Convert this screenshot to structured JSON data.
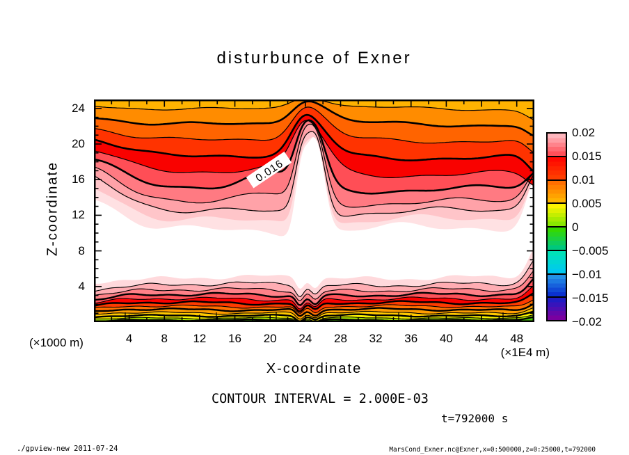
{
  "page": {
    "title": "disturbunce of Exner",
    "footer_left": "./gpview-new  2011-07-24",
    "footer_right": "MarsCond_Exner.nc@Exner,x=0:500000,z=0:25000,t=792000"
  },
  "chart_data": {
    "type": "filled_contour",
    "title": "disturbunce of Exner",
    "xlabel": "X-coordinate",
    "ylabel": "Z-coordinate",
    "x_unit_label_left": "(×1000 m)",
    "x_unit_label_right": "(×1E4 m)",
    "x_range": [
      0,
      50
    ],
    "z_range": [
      0,
      25
    ],
    "x_ticks": [
      "4",
      "8",
      "12",
      "16",
      "20",
      "24",
      "28",
      "32",
      "36",
      "40",
      "44",
      "48"
    ],
    "y_ticks": [
      "4",
      "8",
      "12",
      "16",
      "20",
      "24"
    ],
    "contour_interval_text": "CONTOUR INTERVAL = 2.000E-03",
    "time_text": "t=792000 s",
    "inline_contour_label": "0.016",
    "colorbar": {
      "range": [
        -0.02,
        0.02
      ],
      "tick_labels": [
        "0.02",
        "0.015",
        "0.01",
        "0.005",
        "0",
        "−0.005",
        "−0.01",
        "−0.015",
        "−0.02"
      ],
      "segments": [
        {
          "top": "#ffb6bd",
          "bottom": "#ff5059"
        },
        {
          "top": "#ff0800",
          "bottom": "#ff3d00"
        },
        {
          "top": "#ff6f00",
          "bottom": "#ffb300"
        },
        {
          "top": "#fdf400",
          "bottom": "#8ae800"
        },
        {
          "top": "#35d800",
          "bottom": "#00c87d"
        },
        {
          "top": "#00e2b8",
          "bottom": "#00c9f0"
        },
        {
          "top": "#2391e8",
          "bottom": "#0a31d0"
        },
        {
          "top": "#201bc4",
          "bottom": "#7a00a0"
        }
      ]
    },
    "upper_bands": [
      {
        "color": "#ffb301",
        "base": 13,
        "namp": 3,
        "ph": 0.5,
        "p1": -8,
        "s1": 18,
        "p2": -11,
        "s2": 24,
        "p3": 0,
        "re": 16,
        "ls": -6
      },
      {
        "color": "#ff8c00",
        "base": 35,
        "namp": 4,
        "ph": 1.2,
        "p1": -16,
        "s1": 18,
        "p2": -21,
        "s2": 24,
        "p3": 0,
        "re": 20,
        "ls": -13
      },
      {
        "color": "#ff6400",
        "base": 58,
        "namp": 4.5,
        "ph": 1.9,
        "p1": -22,
        "s1": 18,
        "p2": -28,
        "s2": 24,
        "p3": 0,
        "re": 24,
        "ls": -21
      },
      {
        "color": "#ff3300",
        "base": 82,
        "namp": 5,
        "ph": 2.6,
        "p1": -28,
        "s1": 17,
        "p2": -36,
        "s2": 23,
        "p3": 0,
        "re": 26,
        "ls": -30
      },
      {
        "color": "#f90200",
        "base": 106,
        "namp": 5.5,
        "ph": 3.3,
        "p1": -35,
        "s1": 16,
        "p2": -47,
        "s2": 22,
        "p3": -8,
        "re": 20,
        "ls": -38
      },
      {
        "color": "#ff4e56",
        "base": 128,
        "namp": 6,
        "ph": 4.0,
        "p1": -47,
        "s1": 12,
        "p2": -73,
        "s2": 15,
        "p3": -20,
        "re": -24,
        "ls": -44
      },
      {
        "color": "#ff7a82",
        "base": 147,
        "namp": 6.5,
        "ph": 4.7,
        "p1": -57,
        "s1": 11,
        "p2": -93,
        "s2": 14,
        "p3": -10,
        "re": -48,
        "ls": -48
      },
      {
        "color": "#ffa2a8",
        "base": 161,
        "namp": 7,
        "ph": 5.4,
        "p1": -67,
        "s1": 10,
        "p2": -109,
        "s2": 13,
        "p3": 0,
        "re": -62,
        "ls": -50
      },
      {
        "color": "#ffc5c9",
        "base": 174,
        "namp": 9,
        "ph": 6.1,
        "p1": -77,
        "s1": 9.5,
        "p2": -122,
        "s2": 12.5,
        "p3": 0,
        "re": -72,
        "ls": -48
      },
      {
        "color": "#ffe1e3",
        "base": 187,
        "namp": 10,
        "ph": 6.8,
        "p1": -87,
        "s1": 9,
        "p2": -134,
        "s2": 12,
        "p3": 0,
        "re": -80,
        "ls": -45
      }
    ],
    "line_widths_upper": [
      1.2,
      2.6,
      1.2,
      2.6,
      1.2,
      2.6,
      1.2,
      1.2,
      0,
      0
    ],
    "lower_bands": [
      {
        "color": "#ffd9dc",
        "base": 256,
        "namp": 4.5,
        "ph": 0.4,
        "n1": 15,
        "n2": 13,
        "re": -48,
        "ls": 7
      },
      {
        "color": "#ffadb3",
        "base": 266,
        "namp": 4.0,
        "ph": 1.1,
        "n1": 15,
        "n2": 13,
        "re": -40,
        "ls": 7
      },
      {
        "color": "#ff8188",
        "base": 274,
        "namp": 3.6,
        "ph": 1.8,
        "n1": 14,
        "n2": 12,
        "re": -33,
        "ls": 6
      },
      {
        "color": "#ff5159",
        "base": 281,
        "namp": 3.2,
        "ph": 2.5,
        "n1": 14,
        "n2": 12,
        "re": -27,
        "ls": 6
      },
      {
        "color": "#fa0100",
        "base": 287,
        "namp": 2.9,
        "ph": 3.2,
        "n1": 13,
        "n2": 11,
        "re": -22,
        "ls": 5
      },
      {
        "color": "#ff3b00",
        "base": 292.5,
        "namp": 2.6,
        "ph": 3.9,
        "n1": 12,
        "n2": 10,
        "re": -18,
        "ls": 5
      },
      {
        "color": "#ff6f00",
        "base": 297.5,
        "namp": 2.3,
        "ph": 4.6,
        "n1": 11,
        "n2": 9,
        "re": -14,
        "ls": 4
      },
      {
        "color": "#ff9d00",
        "base": 302,
        "namp": 2.1,
        "ph": 5.3,
        "n1": 10,
        "n2": 8,
        "re": -11,
        "ls": 4
      },
      {
        "color": "#ffc901",
        "base": 306.5,
        "namp": 1.9,
        "ph": 6.0,
        "n1": 9,
        "n2": 7,
        "re": -9,
        "ls": 3
      },
      {
        "color": "#f7f100",
        "base": 310.5,
        "namp": 1.7,
        "ph": 6.7,
        "n1": 8,
        "n2": 6,
        "re": -7,
        "ls": 3
      },
      {
        "color": "#a9e500",
        "base": 314,
        "namp": 1.4,
        "ph": 7.4,
        "n1": 6,
        "n2": 5,
        "re": -5,
        "ls": 2
      },
      {
        "color": "#49c901",
        "base": 317,
        "namp": 1.1,
        "ph": 8.1,
        "n1": 4,
        "n2": 3,
        "re": -4,
        "ls": 2
      }
    ],
    "line_widths_lower": [
      0,
      1.1,
      1.1,
      2.4,
      1.1,
      2.4,
      1.1,
      2.4,
      1.1,
      2.4,
      1.1,
      2.4
    ]
  }
}
